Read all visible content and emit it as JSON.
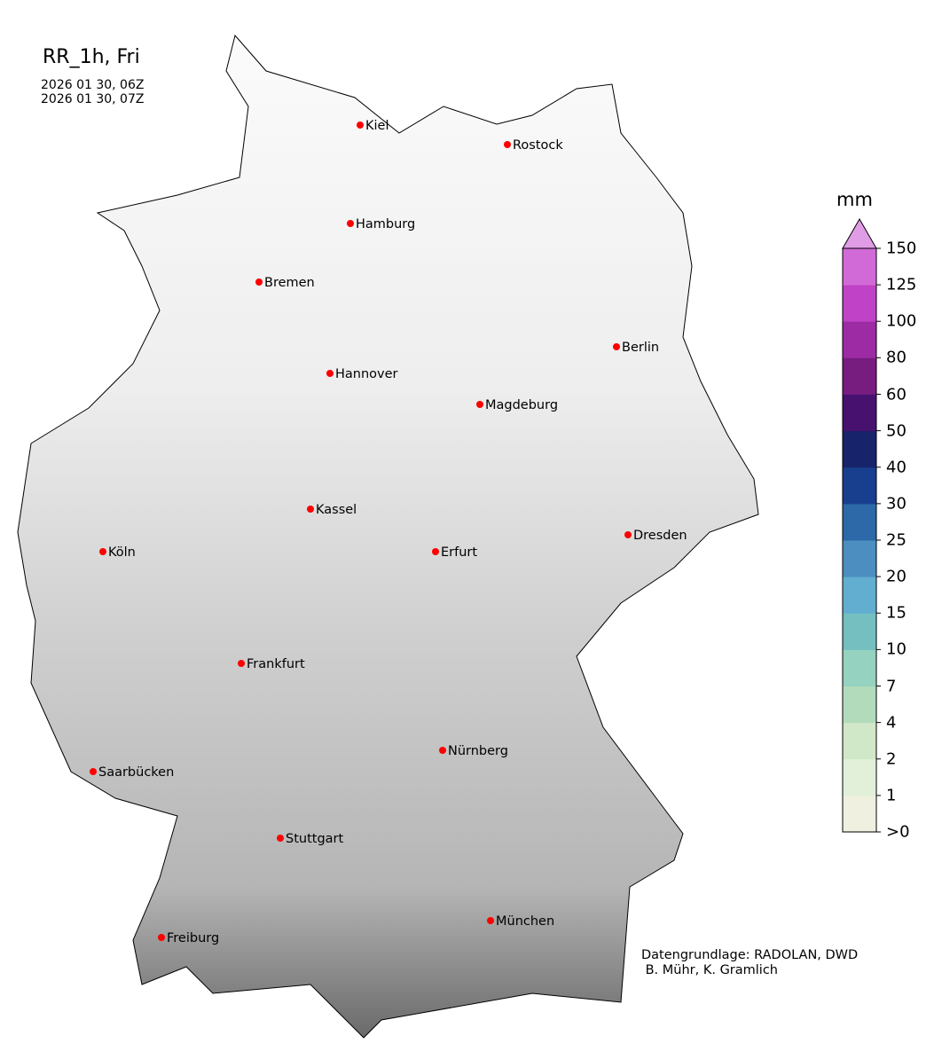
{
  "title": "RR_1h, Fri",
  "time_start": "2026 01 30, 06Z",
  "time_end": "2026 01 30, 07Z",
  "credit_line1": "Datengrundlage: RADOLAN, DWD",
  "credit_line2": " B. Mühr, K. Gramlich",
  "colorbar": {
    "unit": "mm",
    "ticks": [
      ">0",
      "1",
      "2",
      "4",
      "7",
      "10",
      "15",
      "20",
      "25",
      "30",
      "40",
      "50",
      "60",
      "80",
      "100",
      "125",
      "150"
    ],
    "colors": [
      "#f0f0e1",
      "#e2f0d9",
      "#d0e8c8",
      "#b2dbbb",
      "#95d2c0",
      "#75bfc0",
      "#62aed0",
      "#4b8ebf",
      "#2d68a8",
      "#183f8e",
      "#17236a",
      "#471170",
      "#761d7f",
      "#9c2ba4",
      "#c042c6",
      "#d16ad6"
    ],
    "extend_color": "#e19ce6"
  },
  "cities": [
    {
      "name": "Kiel"
    },
    {
      "name": "Rostock"
    },
    {
      "name": "Hamburg"
    },
    {
      "name": "Bremen"
    },
    {
      "name": "Berlin"
    },
    {
      "name": "Hannover"
    },
    {
      "name": "Magdeburg"
    },
    {
      "name": "Kassel"
    },
    {
      "name": "Köln"
    },
    {
      "name": "Erfurt"
    },
    {
      "name": "Dresden"
    },
    {
      "name": "Frankfurt"
    },
    {
      "name": "Nürnberg"
    },
    {
      "name": "Saarbücken"
    },
    {
      "name": "Stuttgart"
    },
    {
      "name": "Freiburg"
    },
    {
      "name": "München"
    }
  ],
  "marker_color": "#ff0000"
}
